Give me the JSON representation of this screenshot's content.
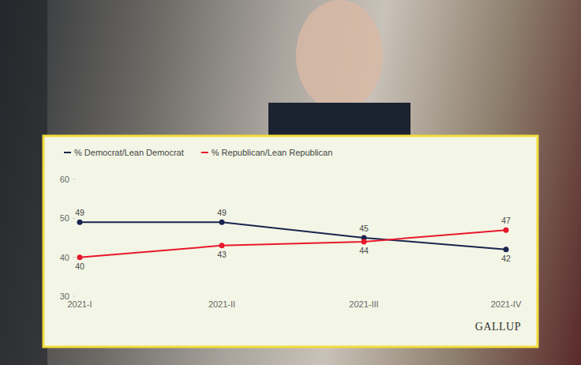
{
  "chart_data": {
    "type": "line",
    "categories": [
      "2021-I",
      "2021-II",
      "2021-III",
      "2021-IV"
    ],
    "series": [
      {
        "name": "% Democrat/Lean Democrat",
        "color": "#1a2450",
        "values": [
          49,
          49,
          45,
          42
        ]
      },
      {
        "name": "% Republican/Lean Republican",
        "color": "#e8182c",
        "values": [
          40,
          43,
          44,
          47
        ]
      }
    ],
    "ylim": [
      30,
      60
    ],
    "yticks": [
      30,
      40,
      50,
      60
    ],
    "grid": false,
    "legend": "top-left",
    "data_labels": true,
    "marker": "circle",
    "annotations": [
      "GALLUP"
    ]
  }
}
